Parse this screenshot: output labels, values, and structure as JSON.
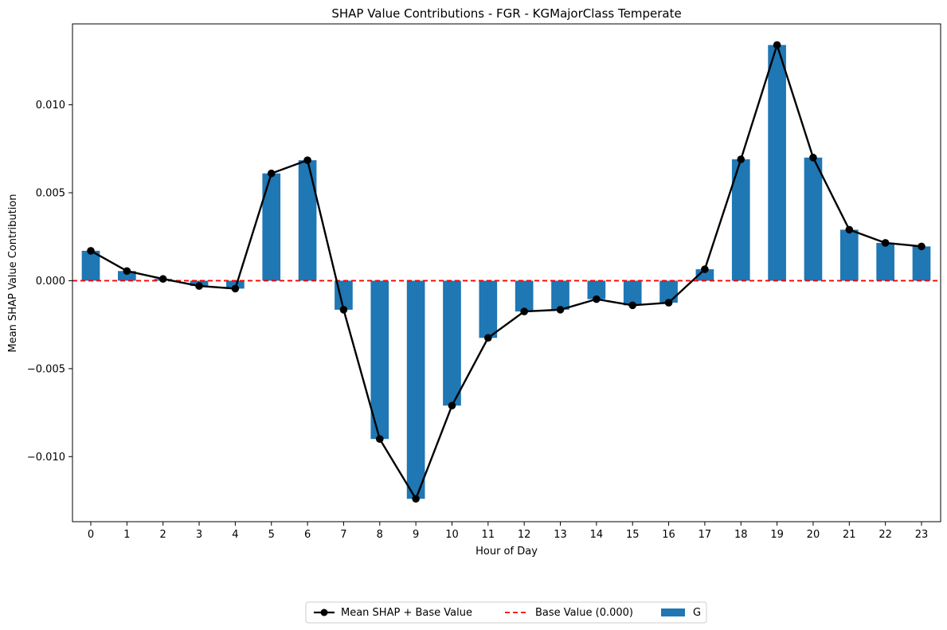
{
  "chart_data": {
    "type": "bar",
    "title": "SHAP Value Contributions - FGR - KGMajorClass Temperate",
    "xlabel": "Hour of Day",
    "ylabel": "Mean SHAP Value Contribution",
    "categories": [
      "0",
      "1",
      "2",
      "3",
      "4",
      "5",
      "6",
      "7",
      "8",
      "9",
      "10",
      "11",
      "12",
      "13",
      "14",
      "15",
      "16",
      "17",
      "18",
      "19",
      "20",
      "21",
      "22",
      "23"
    ],
    "series": [
      {
        "name": "G",
        "kind": "bar",
        "color": "#1f77b4",
        "values": [
          0.0017,
          0.00055,
          0.0001,
          -0.0003,
          -0.00045,
          0.0061,
          0.00685,
          -0.00165,
          -0.009,
          -0.0124,
          -0.0071,
          -0.00325,
          -0.00175,
          -0.00165,
          -0.00105,
          -0.0014,
          -0.00125,
          0.00065,
          0.0069,
          0.0134,
          0.007,
          0.0029,
          0.00215,
          0.00195
        ]
      },
      {
        "name": "Mean SHAP + Base Value",
        "kind": "line",
        "color": "#000000",
        "values": [
          0.0017,
          0.00055,
          0.0001,
          -0.0003,
          -0.00045,
          0.0061,
          0.00685,
          -0.00165,
          -0.009,
          -0.0124,
          -0.0071,
          -0.00325,
          -0.00175,
          -0.00165,
          -0.00105,
          -0.0014,
          -0.00125,
          0.00065,
          0.0069,
          0.0134,
          0.007,
          0.0029,
          0.00215,
          0.00195
        ]
      }
    ],
    "base_value": 0.0,
    "base_label": "Base Value (0.000)",
    "base_color": "#ff0000",
    "yticks": [
      -0.01,
      -0.005,
      0.0,
      0.005,
      0.01
    ],
    "ytick_labels": [
      "−0.010",
      "−0.005",
      "0.000",
      "0.005",
      "0.010"
    ],
    "ylim": [
      -0.0137,
      0.0146
    ],
    "grid": false,
    "legend_placement": "bottom-center",
    "legend": [
      "Mean SHAP + Base Value",
      "Base Value (0.000)",
      "G"
    ]
  }
}
